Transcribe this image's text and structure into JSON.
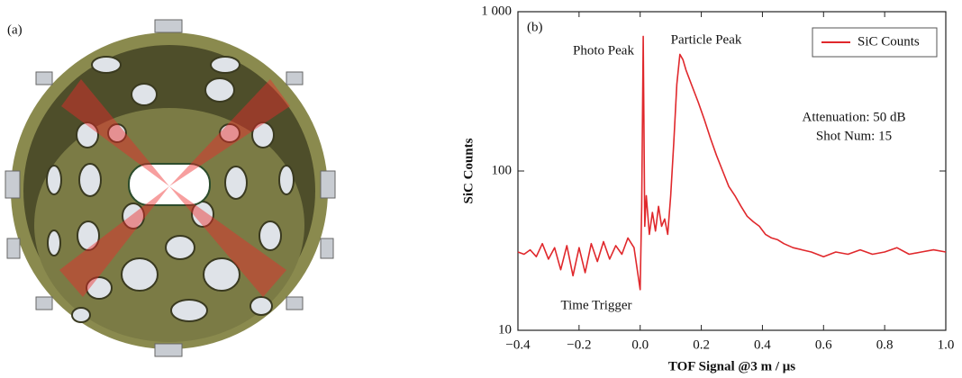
{
  "figure": {
    "panel_a": {
      "label": "(a)"
    }
  },
  "chart_data": {
    "type": "line",
    "panel_label": "(b)",
    "xlabel": "TOF Signal @3 m / μs",
    "ylabel": "SiC Counts",
    "annotations": [
      "Photo Peak",
      "Particle Peak",
      "Time Trigger",
      "Attenuation: 50 dB",
      "Shot Num: 15"
    ],
    "xlim": [
      -0.4,
      1.0
    ],
    "xticks": [
      {
        "value": -0.4,
        "label": "−0.4"
      },
      {
        "value": -0.2,
        "label": "−0.2"
      },
      {
        "value": 0,
        "label": "0.0"
      },
      0.2,
      0.4,
      0.6,
      0.8,
      {
        "value": 1,
        "label": "1.0"
      }
    ],
    "ylim": [
      10,
      1000
    ],
    "ylog": true,
    "yticks": [
      10,
      100,
      {
        "value": 1000,
        "label": "1 000"
      }
    ],
    "legend": "upper right",
    "x": [
      -0.4,
      -0.38,
      -0.36,
      -0.34,
      -0.32,
      -0.3,
      -0.28,
      -0.26,
      -0.24,
      -0.22,
      -0.2,
      -0.18,
      -0.16,
      -0.14,
      -0.12,
      -0.1,
      -0.08,
      -0.06,
      -0.04,
      -0.02,
      0.0,
      0.005,
      0.01,
      0.015,
      0.02,
      0.03,
      0.04,
      0.05,
      0.06,
      0.07,
      0.08,
      0.09,
      0.1,
      0.11,
      0.12,
      0.13,
      0.14,
      0.15,
      0.17,
      0.19,
      0.21,
      0.23,
      0.25,
      0.27,
      0.29,
      0.31,
      0.33,
      0.35,
      0.37,
      0.39,
      0.41,
      0.43,
      0.45,
      0.47,
      0.5,
      0.53,
      0.56,
      0.6,
      0.64,
      0.68,
      0.72,
      0.76,
      0.8,
      0.84,
      0.88,
      0.92,
      0.96,
      1.0
    ],
    "series": [
      {
        "name": "SiC Counts",
        "color": "#e0282c",
        "values": [
          31,
          30,
          32,
          29,
          35,
          28,
          33,
          24,
          34,
          22,
          33,
          23,
          35,
          27,
          36,
          28,
          34,
          30,
          38,
          33,
          18,
          60,
          700,
          45,
          70,
          40,
          55,
          42,
          60,
          45,
          50,
          40,
          70,
          150,
          350,
          540,
          500,
          430,
          340,
          270,
          210,
          160,
          125,
          100,
          80,
          70,
          60,
          52,
          48,
          45,
          40,
          38,
          37,
          35,
          33,
          32,
          31,
          29,
          31,
          30,
          32,
          30,
          31,
          33,
          30,
          31,
          32,
          31
        ]
      }
    ]
  }
}
